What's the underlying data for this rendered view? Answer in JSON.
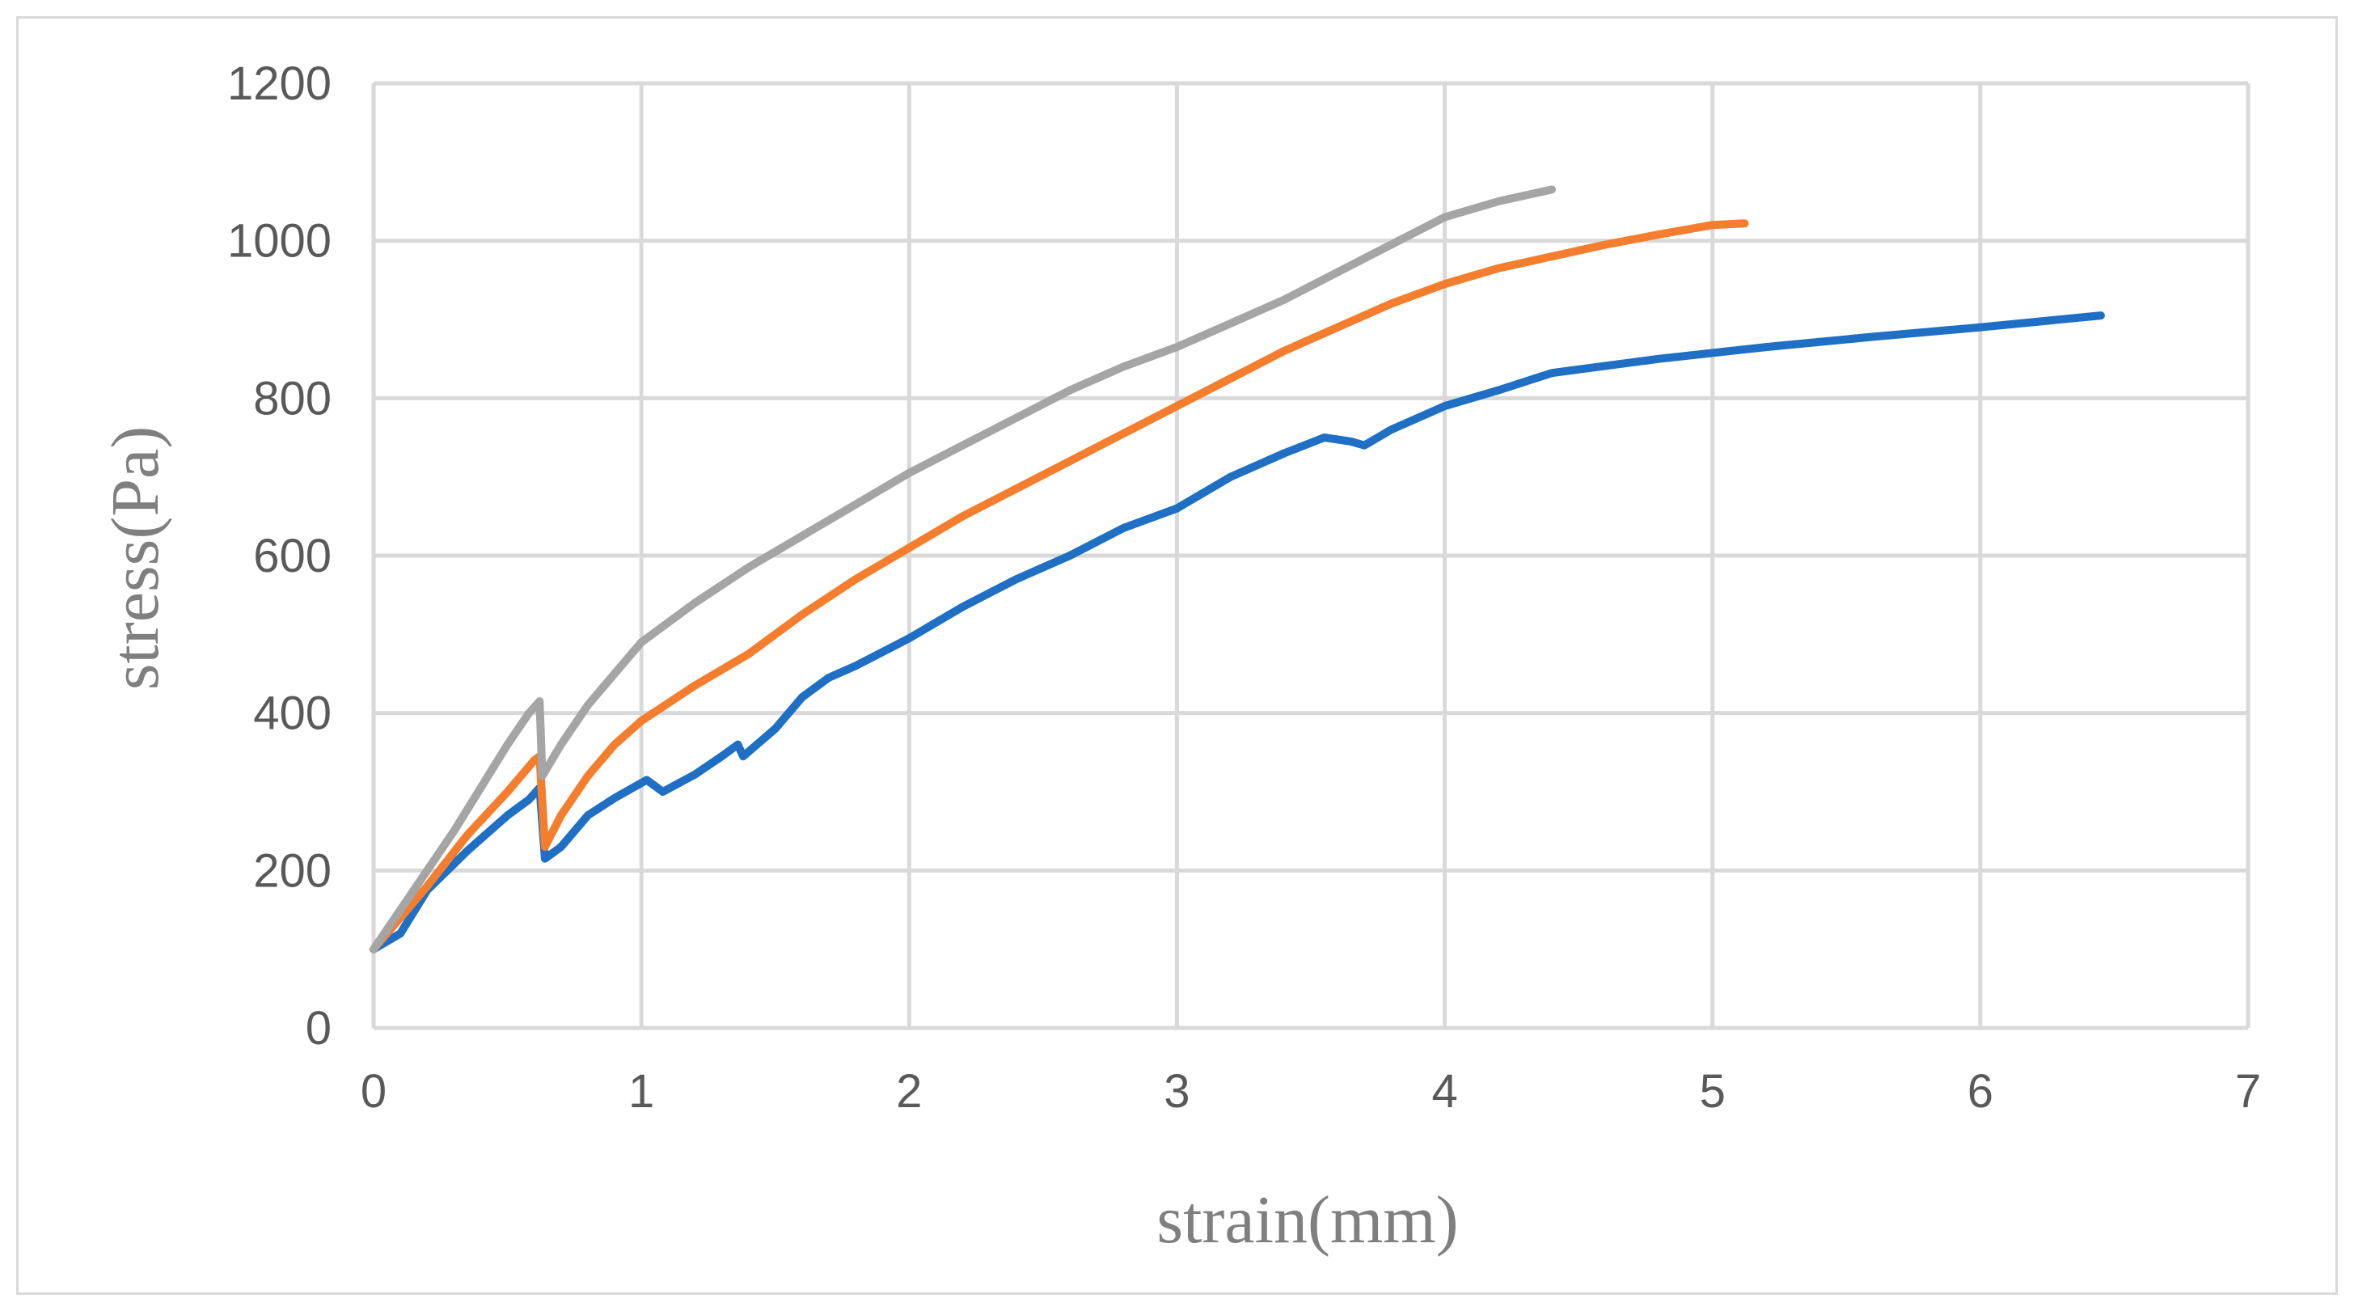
{
  "chart_data": {
    "type": "line",
    "title": "",
    "xlabel": "strain(mm)",
    "ylabel": "stress(Pa)",
    "xlim": [
      0,
      7
    ],
    "ylim": [
      0,
      1200
    ],
    "xticks": [
      0,
      1,
      2,
      3,
      4,
      5,
      6,
      7
    ],
    "yticks": [
      0,
      200,
      400,
      600,
      800,
      1000,
      1200
    ],
    "grid": true,
    "legend": "none",
    "series": [
      {
        "color": "#1f6fc5",
        "points": [
          [
            0,
            100
          ],
          [
            0.1,
            120
          ],
          [
            0.2,
            175
          ],
          [
            0.35,
            225
          ],
          [
            0.5,
            270
          ],
          [
            0.58,
            290
          ],
          [
            0.62,
            305
          ],
          [
            0.64,
            215
          ],
          [
            0.7,
            230
          ],
          [
            0.8,
            270
          ],
          [
            0.9,
            292
          ],
          [
            1.02,
            315
          ],
          [
            1.08,
            300
          ],
          [
            1.2,
            322
          ],
          [
            1.3,
            345
          ],
          [
            1.36,
            360
          ],
          [
            1.38,
            345
          ],
          [
            1.5,
            380
          ],
          [
            1.6,
            420
          ],
          [
            1.7,
            445
          ],
          [
            1.8,
            460
          ],
          [
            2.0,
            495
          ],
          [
            2.2,
            535
          ],
          [
            2.4,
            570
          ],
          [
            2.6,
            600
          ],
          [
            2.8,
            635
          ],
          [
            3.0,
            660
          ],
          [
            3.2,
            700
          ],
          [
            3.4,
            730
          ],
          [
            3.55,
            750
          ],
          [
            3.65,
            745
          ],
          [
            3.7,
            740
          ],
          [
            3.8,
            760
          ],
          [
            4.0,
            790
          ],
          [
            4.2,
            810
          ],
          [
            4.4,
            832
          ],
          [
            4.8,
            850
          ],
          [
            5.2,
            865
          ],
          [
            5.6,
            878
          ],
          [
            6.0,
            890
          ],
          [
            6.45,
            905
          ]
        ]
      },
      {
        "color": "#f47e2e",
        "points": [
          [
            0,
            100
          ],
          [
            0.1,
            140
          ],
          [
            0.2,
            180
          ],
          [
            0.35,
            245
          ],
          [
            0.5,
            300
          ],
          [
            0.6,
            340
          ],
          [
            0.62,
            345
          ],
          [
            0.64,
            230
          ],
          [
            0.7,
            270
          ],
          [
            0.8,
            320
          ],
          [
            0.9,
            360
          ],
          [
            1.0,
            390
          ],
          [
            1.2,
            435
          ],
          [
            1.4,
            475
          ],
          [
            1.6,
            525
          ],
          [
            1.8,
            570
          ],
          [
            2.0,
            610
          ],
          [
            2.2,
            650
          ],
          [
            2.4,
            685
          ],
          [
            2.6,
            720
          ],
          [
            2.8,
            755
          ],
          [
            3.0,
            790
          ],
          [
            3.2,
            825
          ],
          [
            3.4,
            860
          ],
          [
            3.6,
            890
          ],
          [
            3.8,
            920
          ],
          [
            4.0,
            945
          ],
          [
            4.2,
            965
          ],
          [
            4.4,
            980
          ],
          [
            4.6,
            995
          ],
          [
            4.8,
            1008
          ],
          [
            5.0,
            1020
          ],
          [
            5.12,
            1022
          ]
        ]
      },
      {
        "color": "#a5a5a5",
        "points": [
          [
            0,
            100
          ],
          [
            0.1,
            150
          ],
          [
            0.2,
            200
          ],
          [
            0.3,
            250
          ],
          [
            0.4,
            305
          ],
          [
            0.5,
            360
          ],
          [
            0.58,
            400
          ],
          [
            0.62,
            415
          ],
          [
            0.63,
            320
          ],
          [
            0.7,
            360
          ],
          [
            0.8,
            410
          ],
          [
            0.9,
            450
          ],
          [
            1.0,
            490
          ],
          [
            1.2,
            540
          ],
          [
            1.4,
            585
          ],
          [
            1.6,
            625
          ],
          [
            1.8,
            665
          ],
          [
            2.0,
            705
          ],
          [
            2.2,
            740
          ],
          [
            2.4,
            775
          ],
          [
            2.6,
            810
          ],
          [
            2.8,
            840
          ],
          [
            3.0,
            865
          ],
          [
            3.2,
            895
          ],
          [
            3.4,
            925
          ],
          [
            3.6,
            960
          ],
          [
            3.8,
            995
          ],
          [
            4.0,
            1030
          ],
          [
            4.2,
            1050
          ],
          [
            4.4,
            1065
          ]
        ]
      }
    ]
  }
}
